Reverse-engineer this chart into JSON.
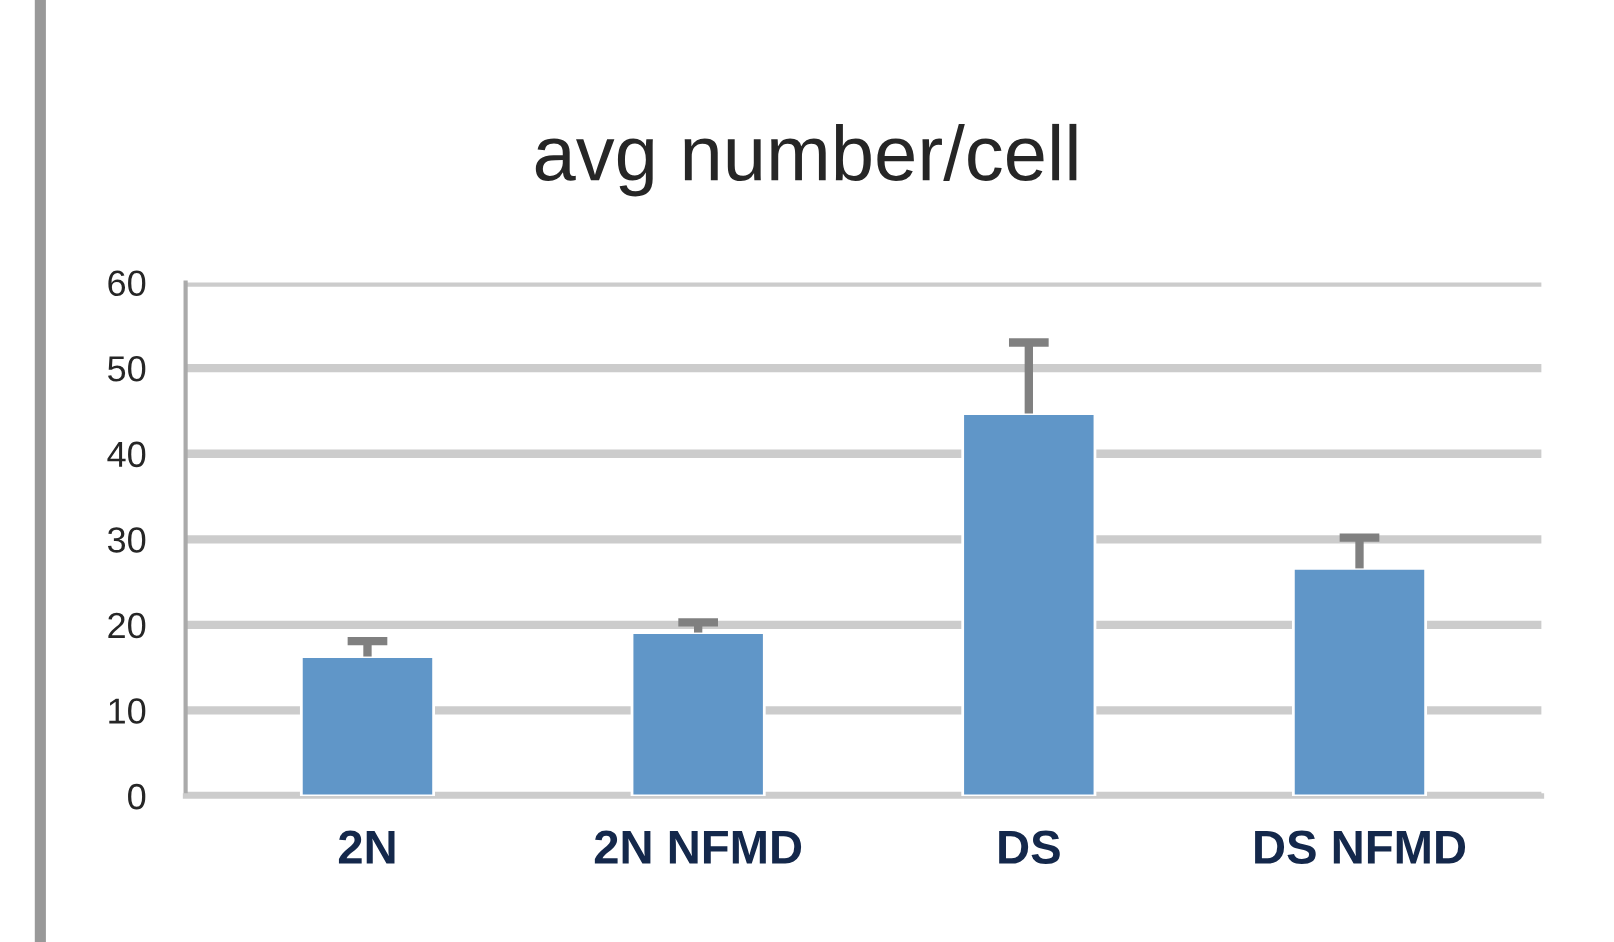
{
  "chart_data": {
    "type": "bar",
    "title": "avg number/cell",
    "categories": [
      "2N",
      "2N NFMD",
      "DS",
      "DS NFMD"
    ],
    "values": [
      16.3,
      19.1,
      44.7,
      26.6
    ],
    "errors": [
      [
        16.3,
        18.1
      ],
      [
        19.1,
        20.3
      ],
      [
        44.7,
        53.0
      ],
      [
        26.6,
        30.2
      ]
    ],
    "color": "#6096c8",
    "ylim": [
      0,
      60
    ],
    "yticks": [
      0,
      10,
      20,
      30,
      40,
      50,
      60
    ],
    "grid": "y"
  }
}
